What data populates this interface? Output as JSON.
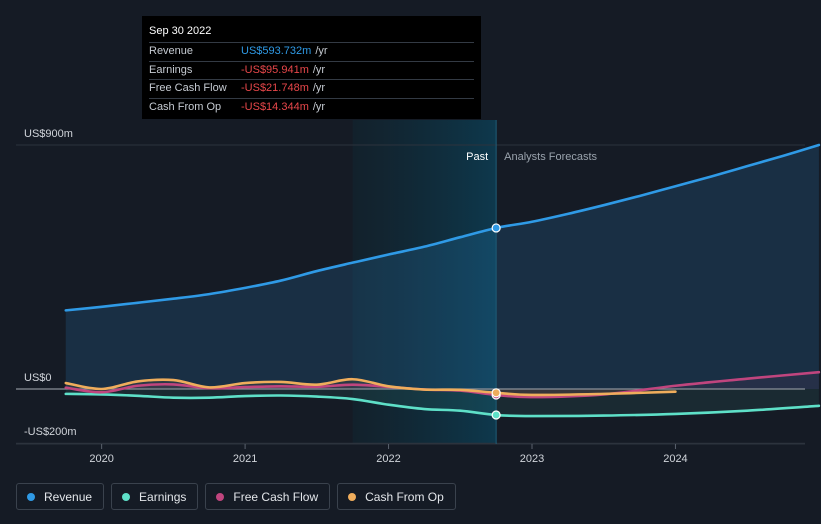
{
  "tooltip": {
    "date": "Sep 30 2022",
    "rows": [
      {
        "label": "Revenue",
        "value": "US$593.732m",
        "unit": "/yr",
        "color": "#2f9ae6"
      },
      {
        "label": "Earnings",
        "value": "-US$95.941m",
        "unit": "/yr",
        "color": "#e8474a"
      },
      {
        "label": "Free Cash Flow",
        "value": "-US$21.748m",
        "unit": "/yr",
        "color": "#e8474a"
      },
      {
        "label": "Cash From Op",
        "value": "-US$14.344m",
        "unit": "/yr",
        "color": "#e8474a"
      }
    ]
  },
  "chart_data": {
    "type": "line",
    "title": "",
    "xlabel": "",
    "ylabel": "",
    "ylim": [
      -250,
      1000
    ],
    "y_ticks": [
      {
        "value": 900,
        "label": "US$900m"
      },
      {
        "value": 0,
        "label": "US$0"
      },
      {
        "value": -200,
        "label": "-US$200m"
      }
    ],
    "x_ticks": [
      {
        "value": 2020,
        "label": "2020"
      },
      {
        "value": 2021,
        "label": "2021"
      },
      {
        "value": 2022,
        "label": "2022"
      },
      {
        "value": 2023,
        "label": "2023"
      },
      {
        "value": 2024,
        "label": "2024"
      }
    ],
    "past_divider": 2022.75,
    "highlight_start": 2021.75,
    "past_label": "Past",
    "forecast_label": "Analysts Forecasts",
    "series": [
      {
        "name": "Revenue",
        "key": "revenue",
        "color": "#2f9ae6",
        "fill": true,
        "x": [
          2019.75,
          2020.0,
          2020.25,
          2020.5,
          2020.75,
          2021.0,
          2021.25,
          2021.5,
          2021.75,
          2022.0,
          2022.25,
          2022.5,
          2022.75,
          2023.0,
          2023.25,
          2023.5,
          2023.75,
          2024.0,
          2024.25,
          2024.5,
          2024.75,
          2025.0
        ],
        "values": [
          290,
          303,
          318,
          333,
          350,
          373,
          400,
          435,
          466,
          496,
          525,
          560,
          594,
          617,
          646,
          678,
          712,
          748,
          784,
          822,
          860,
          900
        ]
      },
      {
        "name": "Earnings",
        "key": "earnings",
        "color": "#5ee0c8",
        "fill": false,
        "x": [
          2019.75,
          2020.0,
          2020.25,
          2020.5,
          2020.75,
          2021.0,
          2021.25,
          2021.5,
          2021.75,
          2022.0,
          2022.25,
          2022.5,
          2022.75,
          2023.0,
          2023.5,
          2024.0,
          2024.5,
          2025.0
        ],
        "values": [
          -18,
          -20,
          -25,
          -32,
          -32,
          -26,
          -24,
          -28,
          -37,
          -58,
          -74,
          -80,
          -96,
          -100,
          -98,
          -92,
          -80,
          -62
        ]
      },
      {
        "name": "Free Cash Flow",
        "key": "fcf",
        "color": "#c0457e",
        "fill": false,
        "x": [
          2019.75,
          2020.0,
          2020.25,
          2020.5,
          2020.75,
          2021.0,
          2021.25,
          2021.5,
          2021.75,
          2022.0,
          2022.25,
          2022.5,
          2022.75,
          2023.0,
          2023.5,
          2024.0,
          2024.5,
          2025.0
        ],
        "values": [
          5,
          -12,
          12,
          17,
          3,
          7,
          10,
          8,
          16,
          8,
          -2,
          -6,
          -22,
          -30,
          -20,
          12,
          38,
          62
        ]
      },
      {
        "name": "Cash From Op",
        "key": "cfo",
        "color": "#efad5c",
        "fill": false,
        "x": [
          2019.75,
          2020.0,
          2020.25,
          2020.5,
          2020.75,
          2021.0,
          2021.25,
          2021.5,
          2021.75,
          2022.0,
          2022.25,
          2022.5,
          2022.75,
          2023.0,
          2023.5,
          2024.0
        ],
        "values": [
          22,
          0,
          28,
          33,
          6,
          22,
          26,
          16,
          36,
          10,
          -2,
          -3,
          -14,
          -22,
          -18,
          -10
        ]
      }
    ]
  },
  "legend": [
    {
      "label": "Revenue",
      "color": "#2f9ae6"
    },
    {
      "label": "Earnings",
      "color": "#5ee0c8"
    },
    {
      "label": "Free Cash Flow",
      "color": "#c0457e"
    },
    {
      "label": "Cash From Op",
      "color": "#efad5c"
    }
  ]
}
